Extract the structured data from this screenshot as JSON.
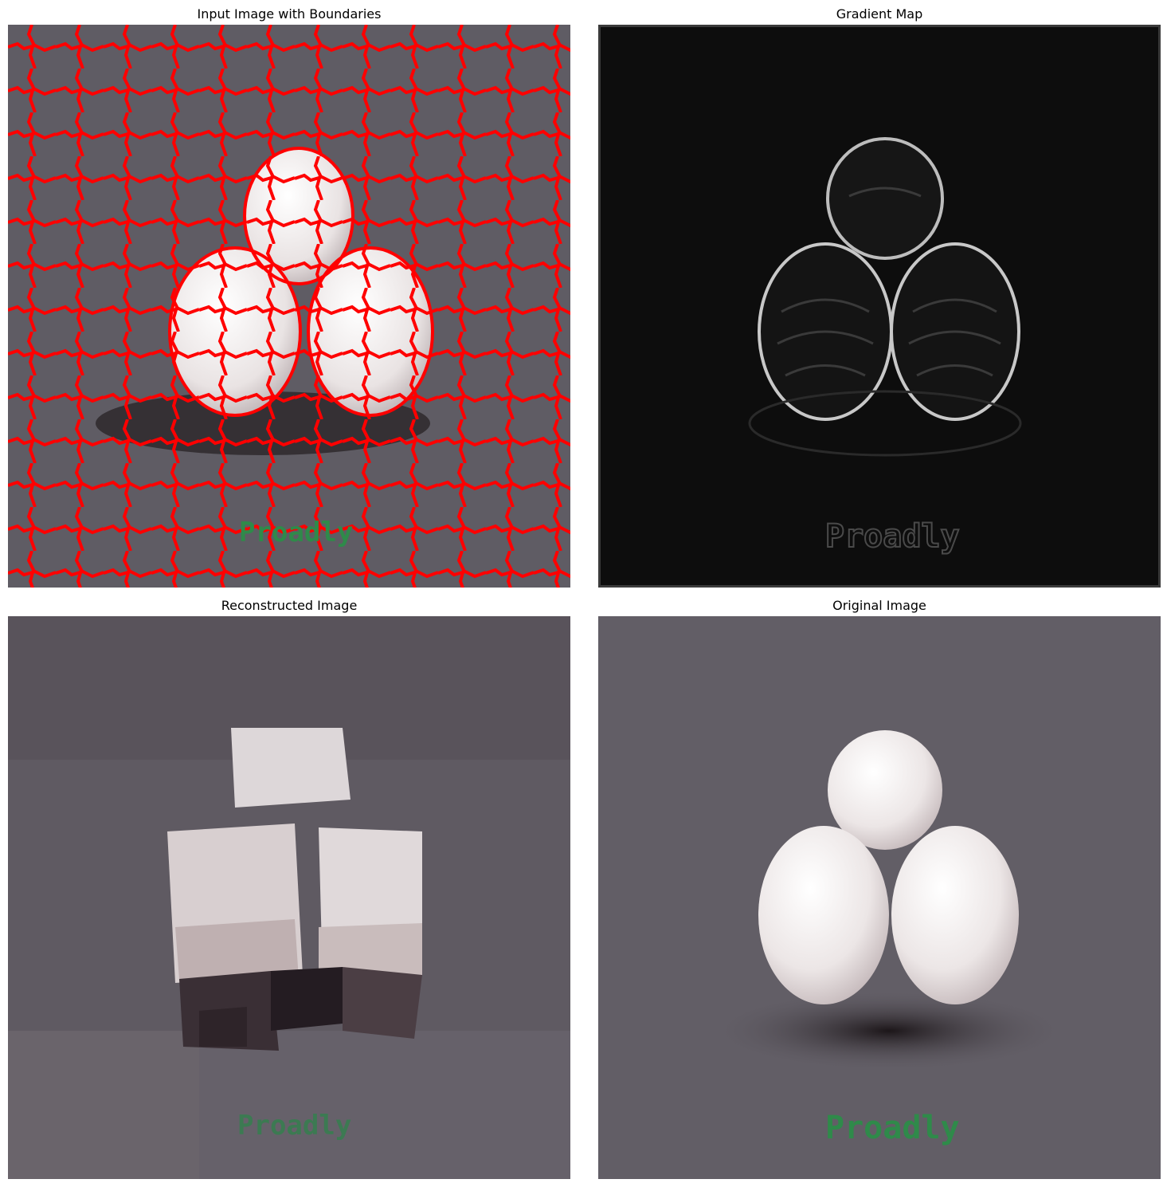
{
  "panels": [
    {
      "title": "Input Image with Boundaries",
      "watermark": "Proadly"
    },
    {
      "title": "Gradient Map",
      "watermark": "Proadly"
    },
    {
      "title": "Reconstructed Image",
      "watermark": "Proadly"
    },
    {
      "title": "Original Image",
      "watermark": "Proadly"
    }
  ],
  "colors": {
    "background_gray": "#5f5c64",
    "ball_white": "#eeeaea",
    "boundary_red": "#ff0000",
    "watermark_green": "#2f8a4a",
    "gradient_black": "#0d0d0d"
  }
}
